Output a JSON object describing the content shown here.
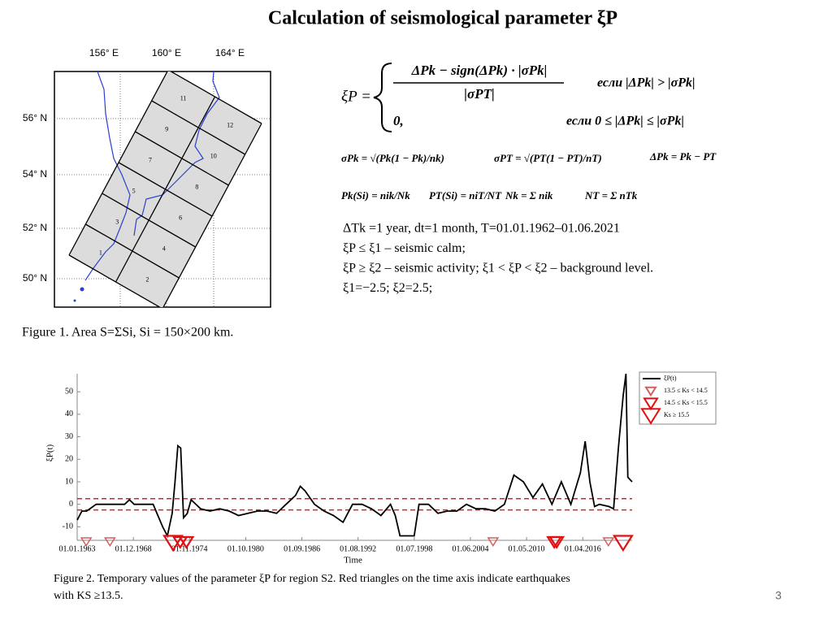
{
  "title": "Calculation of  seismological parameter ξP",
  "map": {
    "lon_labels": [
      "156° E",
      "160° E",
      "164° E"
    ],
    "lat_labels": [
      "56° N",
      "54° N",
      "52° N",
      "50° N"
    ],
    "cells": [
      "11",
      "12",
      "9",
      "10",
      "7",
      "8",
      "5",
      "6",
      "3",
      "4",
      "1",
      "2"
    ]
  },
  "figure1_caption": "Figure 1. Area S=ΣSi, Si = 150×200 km.",
  "formulas": {
    "lhs": "ξP =",
    "numerator": "ΔPk − sign(ΔPk) · |σPk|",
    "denominator": "|σPT|",
    "cond1": "если |ΔPk| > |σPk|",
    "zero": "0,",
    "cond2": "если 0 ≤ |ΔPk| ≤ |σPk|",
    "sigma_k": "σPk = √(Pk(1 − Pk)/nk)",
    "sigma_t": "σPT = √(PT(1 − PT)/nT)",
    "delta": "ΔPk = Pk − PT",
    "pk": "Pk(Si) = nik/Nk",
    "pt": "PT(Si) = niT/NT",
    "nk": "Nk = Σ nik",
    "nt": "NT = Σ nTk"
  },
  "notes": [
    "ΔTk =1 year, dt=1 month, T=01.01.1962–01.06.2021",
    "ξP ≤ ξ1 – seismic calm;",
    "ξP ≥ ξ2 – seismic activity; ξ1 < ξP < ξ2 – background level.",
    "ξ1=−2.5;  ξ2=2.5;"
  ],
  "chart_data": {
    "type": "line",
    "y_label": "ξP(t)",
    "x_label": "Time",
    "xlim": [
      1963,
      2021.45
    ],
    "ylim": [
      -16,
      58
    ],
    "xticks": [
      {
        "value": 1963,
        "label": "01.01.1963"
      },
      {
        "value": 1968.92,
        "label": "01.12.1968"
      },
      {
        "value": 1974.83,
        "label": "01.11.1974"
      },
      {
        "value": 1980.75,
        "label": "01.10.1980"
      },
      {
        "value": 1986.67,
        "label": "01.09.1986"
      },
      {
        "value": 1992.58,
        "label": "01.08.1992"
      },
      {
        "value": 1998.5,
        "label": "01.07.1998"
      },
      {
        "value": 2004.42,
        "label": "01.06.2004"
      },
      {
        "value": 2010.33,
        "label": "01.05.2010"
      },
      {
        "value": 2016.25,
        "label": "01.04.2016"
      }
    ],
    "yticks": [
      -10,
      0,
      10,
      20,
      30,
      40,
      50
    ],
    "hlines": [
      2.5,
      -2.5
    ],
    "hline_color": "#e02020",
    "series": [
      {
        "name": "ξP(t)",
        "color": "#000000",
        "x": [
          1963,
          1963.5,
          1964,
          1965,
          1966,
          1967,
          1968,
          1968.5,
          1969,
          1970,
          1971,
          1971.5,
          1972,
          1972.5,
          1973,
          1973.3,
          1973.6,
          1973.9,
          1974.2,
          1974.6,
          1975,
          1976,
          1977,
          1978,
          1979,
          1980,
          1981,
          1982,
          1983,
          1984,
          1985,
          1986,
          1986.5,
          1987,
          1988,
          1989,
          1990,
          1991,
          1992,
          1993,
          1994,
          1995,
          1996,
          1996.5,
          1997,
          1998,
          1998.5,
          1999,
          2000,
          2001,
          2002,
          2003,
          2004,
          2005,
          2006,
          2007,
          2008,
          2009,
          2010,
          2011,
          2012,
          2013,
          2014,
          2015,
          2016,
          2016.5,
          2017,
          2017.5,
          2018,
          2019,
          2019.5,
          2020,
          2020.5,
          2020.8,
          2021,
          2021.45
        ],
        "values": [
          -7,
          -3,
          -3,
          0,
          0,
          0,
          0,
          2,
          0,
          0,
          0,
          -5,
          -10,
          -14,
          -4,
          10,
          26,
          25,
          -6,
          -4,
          2,
          -2,
          -3,
          -2,
          -3,
          -5,
          -4,
          -3,
          -3,
          -4,
          0,
          4,
          8,
          6,
          0,
          -3,
          -5,
          -8,
          0,
          0,
          -2,
          -5,
          0,
          -5,
          -14,
          -14,
          -14,
          0,
          0,
          -4,
          -3,
          -3,
          0,
          -2,
          -2,
          -3,
          0,
          13,
          10,
          3,
          9,
          0,
          10,
          0,
          14,
          28,
          10,
          -1,
          0,
          -1,
          -2,
          25,
          48,
          58,
          12,
          10
        ]
      },
      {
        "name": "13.5 ≤ Ks < 14.5",
        "color": "#d06060",
        "x": [
          1963.95,
          1966.45,
          2006.8,
          2018.95
        ]
      },
      {
        "name": "14.5 ≤ Ks < 15.5",
        "color": "#e01010",
        "x": [
          1973.85,
          1974.5,
          2013.25,
          2013.5
        ]
      },
      {
        "name": "Ks ≥ 15.5",
        "color": "#e01010",
        "x": [
          1973.1,
          2020.5
        ]
      }
    ]
  },
  "figure2_caption": [
    "Figure 2. Temporary values of the parameter ξP for region S2. Red triangles on the time axis indicate earthquakes",
    "with KS ≥13.5."
  ],
  "page_number": "3"
}
